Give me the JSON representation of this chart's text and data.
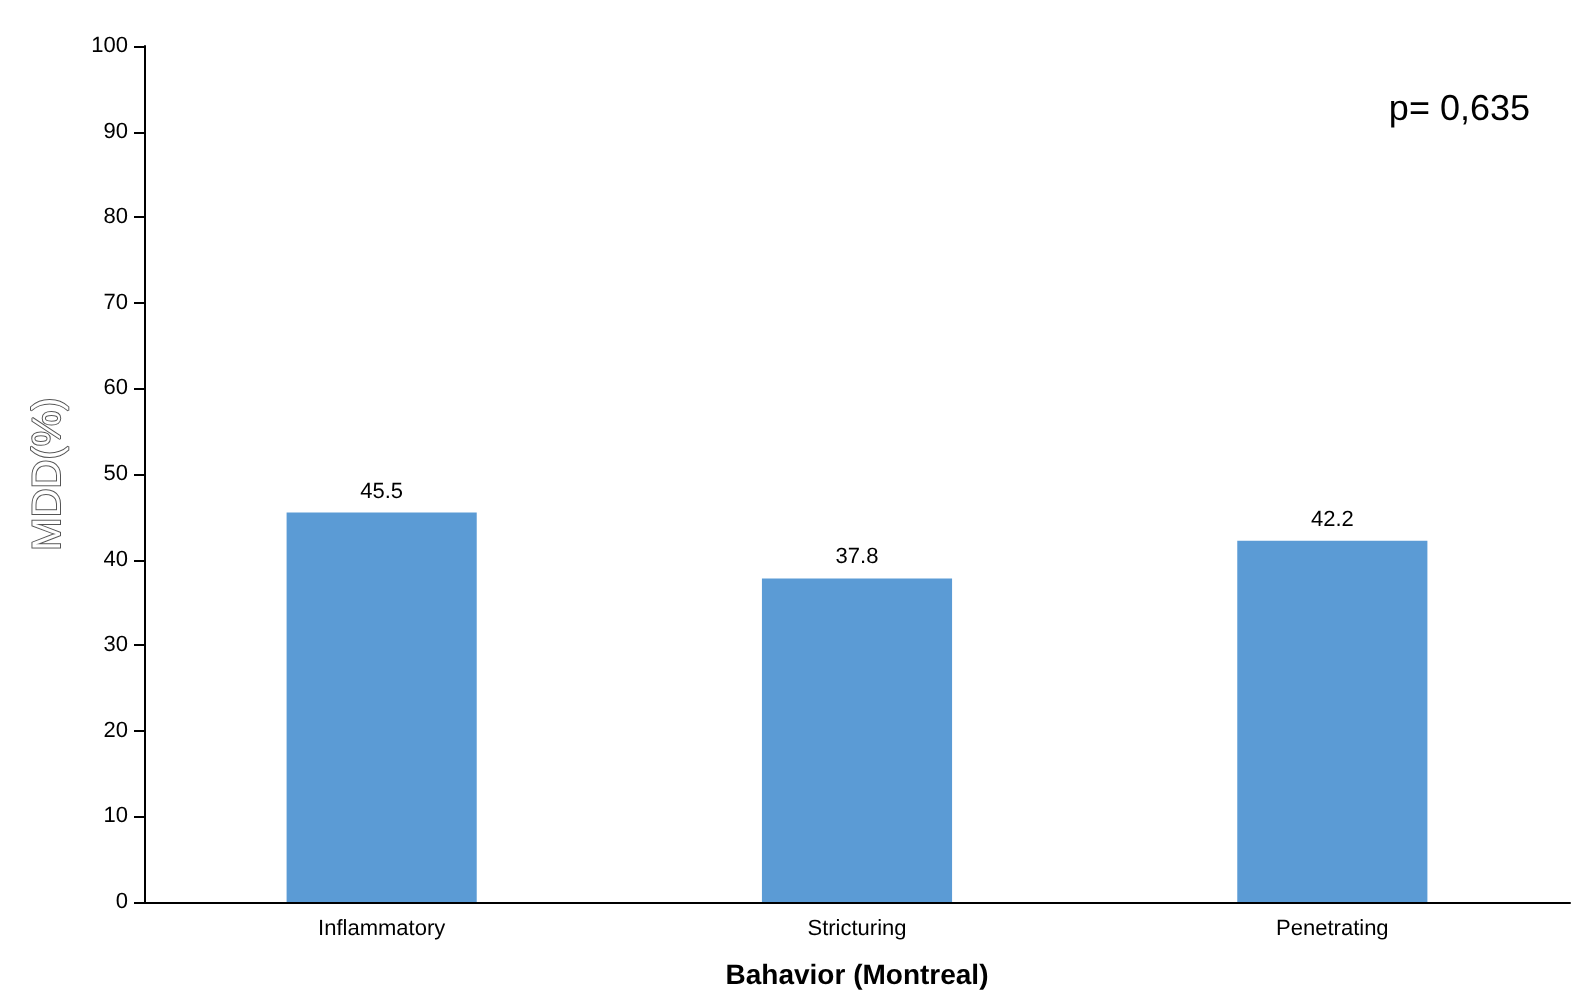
{
  "chart_data": {
    "type": "bar",
    "xlabel": "Bahavior (Montreal)",
    "ylabel": "MDD(%)",
    "categories": [
      "Inflammatory",
      "Stricturing",
      "Penetrating"
    ],
    "values": [
      45.5,
      37.8,
      42.2
    ],
    "color": "#5b9bd5",
    "ylim": [
      0,
      100
    ],
    "yticks": [
      0,
      10,
      20,
      30,
      40,
      50,
      60,
      70,
      80,
      90,
      100
    ],
    "data_labels": true,
    "annotations": [
      "p= 0,635"
    ]
  }
}
